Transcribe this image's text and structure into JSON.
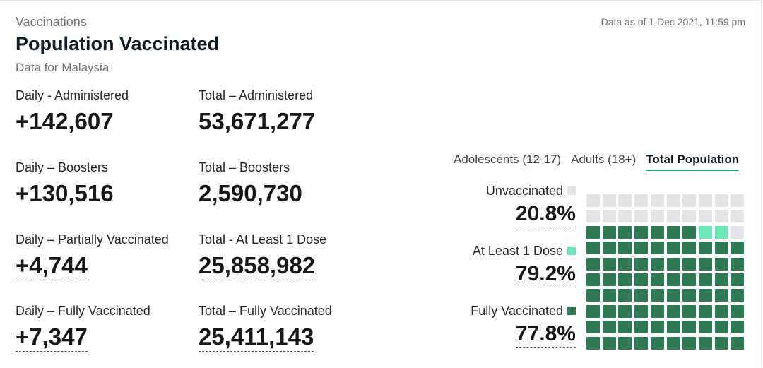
{
  "header": {
    "section": "Vaccinations",
    "title": "Population Vaccinated",
    "subtitle": "Data for Malaysia",
    "data_as_of": "Data as of 1 Dec 2021, 11:59 pm"
  },
  "stats": {
    "daily_administered": {
      "label": "Daily - Administered",
      "value": "+142,607"
    },
    "total_administered": {
      "label": "Total – Administered",
      "value": "53,671,277"
    },
    "daily_boosters": {
      "label": "Daily – Boosters",
      "value": "+130,516"
    },
    "total_boosters": {
      "label": "Total – Boosters",
      "value": "2,590,730"
    },
    "daily_partial": {
      "label": "Daily – Partially Vaccinated",
      "value": "+4,744"
    },
    "total_one_dose": {
      "label": "Total - At Least 1 Dose",
      "value": "25,858,982"
    },
    "daily_full": {
      "label": "Daily – Fully Vaccinated",
      "value": "+7,347"
    },
    "total_full": {
      "label": "Total – Fully Vaccinated",
      "value": "25,411,143"
    }
  },
  "tabs": [
    {
      "label": "Adolescents (12-17)",
      "active": false
    },
    {
      "label": "Adults (18+)",
      "active": false
    },
    {
      "label": "Total Population",
      "active": true
    }
  ],
  "legend": {
    "unvaccinated": {
      "label": "Unvaccinated",
      "value": "20.8%",
      "color": "#e4e4e7"
    },
    "one_dose": {
      "label": "At Least 1 Dose",
      "value": "79.2%",
      "color": "#6ee7b7"
    },
    "fully": {
      "label": "Fully Vaccinated",
      "value": "77.8%",
      "color": "#2f7a55"
    }
  },
  "waffle": {
    "columns": 10,
    "rows": 10,
    "unvaccinated_cells": 21,
    "one_dose_cells": 2,
    "fully_cells": 77
  }
}
